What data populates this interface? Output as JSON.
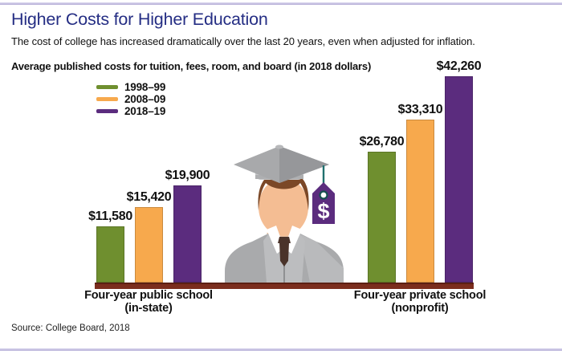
{
  "page": {
    "title": "Higher Costs for Higher Education",
    "subtitle": "The cost of college has increased dramatically over the last 20 years, even when adjusted for inflation.",
    "source": "Source: College Board, 2018"
  },
  "figure": {
    "name": "graduate-with-price-tag",
    "tag_symbol": "$"
  },
  "colors": {
    "title_navy": "#252e84",
    "axis_brown": "#7b2d1d",
    "divider_lavender": "#c9c3e6",
    "tag_purple": "#5b2c7e",
    "string_teal": "#20706f"
  },
  "chart_data": {
    "type": "bar",
    "title": "Average published costs for tuition, fees, room, and board (in 2018 dollars)",
    "categories": [
      {
        "label": "Four-year public school",
        "sublabel": "(in-state)"
      },
      {
        "label": "Four-year private school",
        "sublabel": "(nonprofit)"
      }
    ],
    "series": [
      {
        "name": "1998–99",
        "color": "#6f8f2f",
        "values": [
          11580,
          26780
        ],
        "labels": [
          "$11,580",
          "$26,780"
        ]
      },
      {
        "name": "2008–09",
        "color": "#f7a94d",
        "values": [
          15420,
          33310
        ],
        "labels": [
          "$15,420",
          "$33,310"
        ]
      },
      {
        "name": "2018–19",
        "color": "#5b2c7e",
        "values": [
          19900,
          42260
        ],
        "labels": [
          "$19,900",
          "$42,260"
        ]
      }
    ],
    "ylim": [
      0,
      42260
    ],
    "grid": false,
    "value_axis_shown": false,
    "legend_position": "upper-left",
    "value_label_format": "$#,##0"
  }
}
